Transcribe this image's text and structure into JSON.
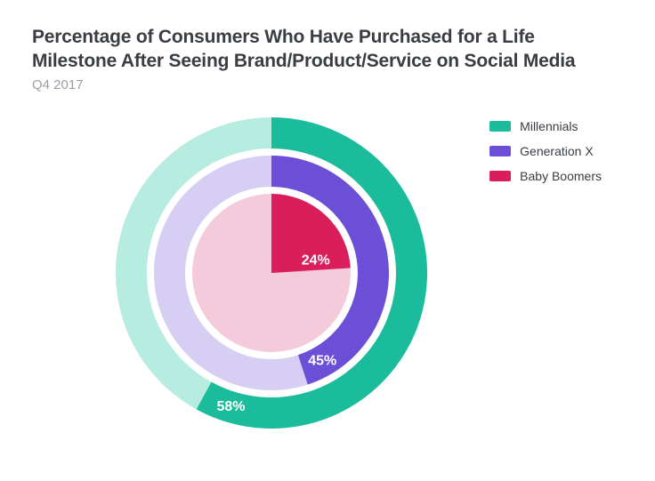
{
  "title": "Percentage of Consumers Who Have Purchased for a Life Milestone After Seeing Brand/Product/Service on Social Media",
  "subtitle": "Q4 2017",
  "chart": {
    "type": "radial-donut",
    "background_color": "#ffffff",
    "title_color": "#3a3d42",
    "subtitle_color": "#9aa0a6",
    "label_text_color": "#ffffff",
    "label_fontsize": 16,
    "series": [
      {
        "name": "Millennials",
        "value": 58,
        "label": "58%",
        "color": "#1bbc9b",
        "track_color": "#b7ece1",
        "outer_r": 175,
        "inner_r": 140
      },
      {
        "name": "Generation X",
        "value": 45,
        "label": "45%",
        "color": "#6c4fd7",
        "track_color": "#d7cef3",
        "outer_r": 132,
        "inner_r": 97
      },
      {
        "name": "Baby Boomers",
        "value": 24,
        "label": "24%",
        "color": "#d91e5b",
        "track_color": "#f5cadb",
        "outer_r": 89,
        "inner_r": 0
      }
    ]
  }
}
